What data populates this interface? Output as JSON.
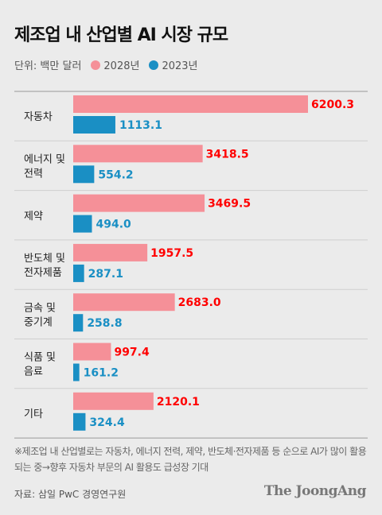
{
  "title": "제조업 내 산업별 AI 시장 규모",
  "unit": "단위: 백만 달러",
  "colors": {
    "series2028": "#f59098",
    "series2023": "#1a8fc4",
    "value2028": "#ff0000",
    "value2023": "#1a8fc4"
  },
  "chart_data": {
    "type": "bar",
    "orientation": "horizontal",
    "categories": [
      [
        "자동차"
      ],
      [
        "에너지 및",
        "전력"
      ],
      [
        "제약"
      ],
      [
        "반도체 및",
        "전자제품"
      ],
      [
        "금속 및",
        "중기계"
      ],
      [
        "식품 및",
        "음료"
      ],
      [
        "기타"
      ]
    ],
    "series": [
      {
        "name": "2028년",
        "values": [
          6200.3,
          3418.5,
          3469.5,
          1957.5,
          2683.0,
          997.4,
          2120.1
        ],
        "labels": [
          "6200.3",
          "3418.5",
          "3469.5",
          "1957.5",
          "2683.0",
          "997.4",
          "2120.1"
        ]
      },
      {
        "name": "2023년",
        "values": [
          1113.1,
          554.2,
          494.0,
          287.1,
          258.8,
          161.2,
          324.4
        ],
        "labels": [
          "1113.1",
          "554.2",
          "494.0",
          "287.1",
          "258.8",
          "161.2",
          "324.4"
        ]
      }
    ]
  },
  "footnote": "※제조업 내 산업별로는 자동차, 에너지 전력, 제약, 반도체·전자제품 등 순으로 AI가 많이 활용되는 중→향후 자동차 부문의 AI 활용도 급성장 기대",
  "source": "자료: 삼일 PwC 경영연구원",
  "brand": "The JoongAng"
}
